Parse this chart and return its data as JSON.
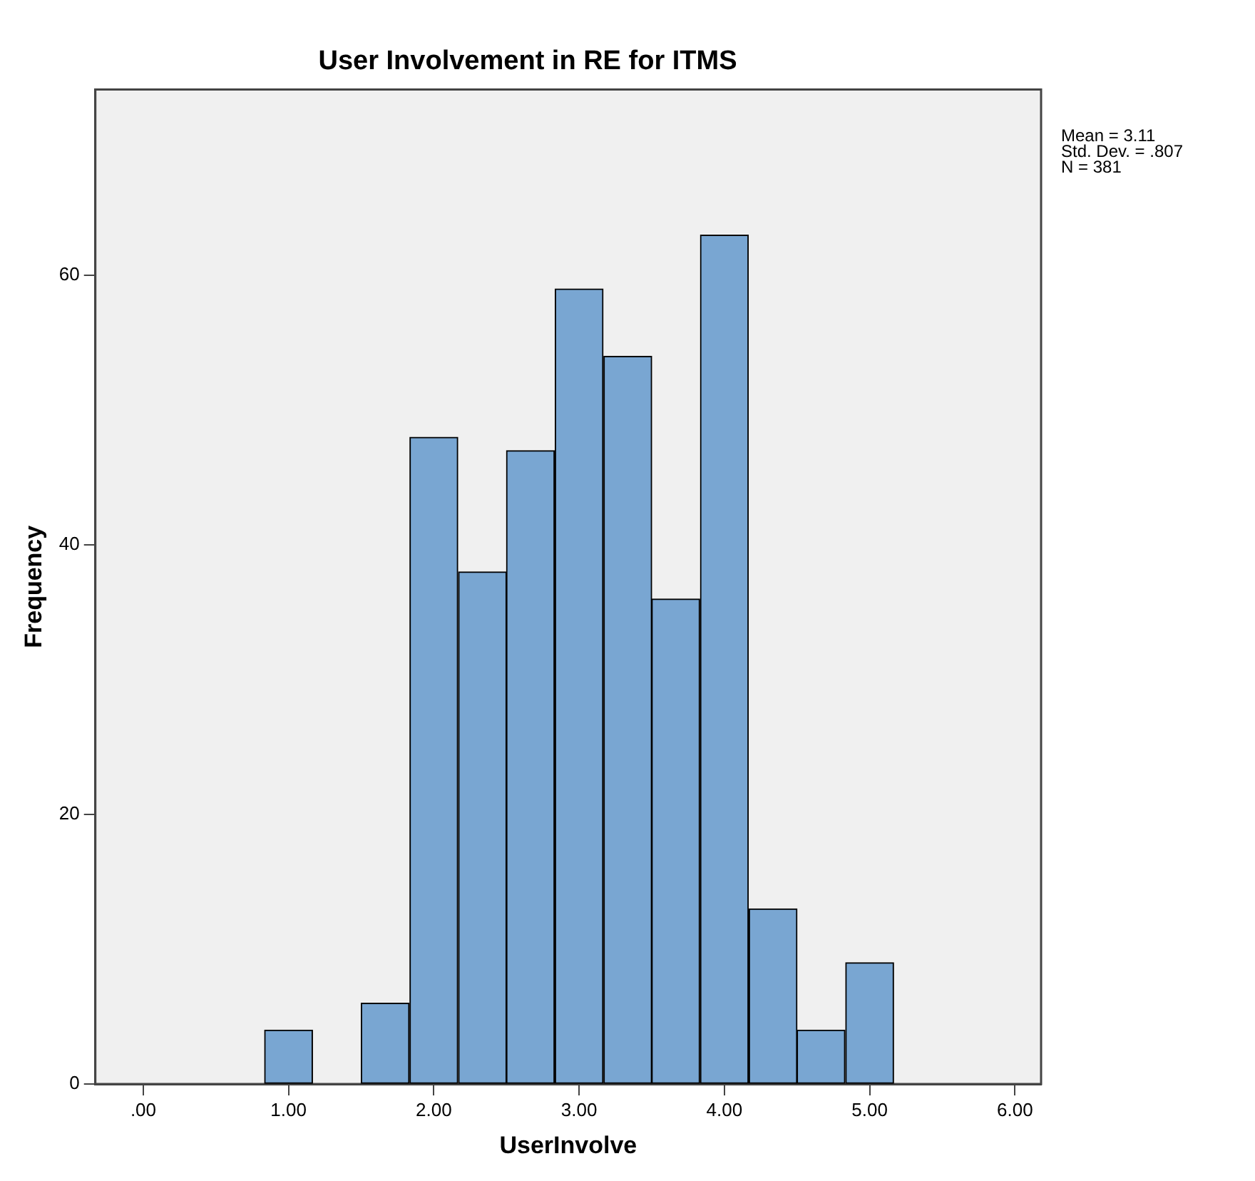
{
  "chart_data": {
    "type": "histogram",
    "title": "User Involvement in RE for ITMS",
    "xlabel": "UserInvolve",
    "ylabel": "Frequency",
    "annotations": [
      "Mean = 3.11",
      "Std. Dev. = .807",
      "N = 381"
    ],
    "bins": [
      0.83,
      1.17,
      1.5,
      1.83,
      2.17,
      2.5,
      2.83,
      3.17,
      3.5,
      3.83,
      4.17,
      4.5,
      4.83,
      5.17
    ],
    "values": [
      4,
      0,
      6,
      48,
      38,
      47,
      59,
      54,
      36,
      63,
      13,
      4,
      9
    ],
    "color": "#79a6d2",
    "xlim": [
      -0.33,
      6.18
    ],
    "xticks": [
      {
        "value": 0,
        "label": ".00"
      },
      {
        "value": 1,
        "label": "1.00"
      },
      {
        "value": 2,
        "label": "2.00"
      },
      {
        "value": 3,
        "label": "3.00"
      },
      {
        "value": 4,
        "label": "4.00"
      },
      {
        "value": 5,
        "label": "5.00"
      },
      {
        "value": 6,
        "label": "6.00"
      }
    ],
    "ylim": [
      0,
      73.8
    ],
    "yticks": [
      0,
      20,
      40,
      60
    ],
    "grid": false,
    "legend": false
  }
}
